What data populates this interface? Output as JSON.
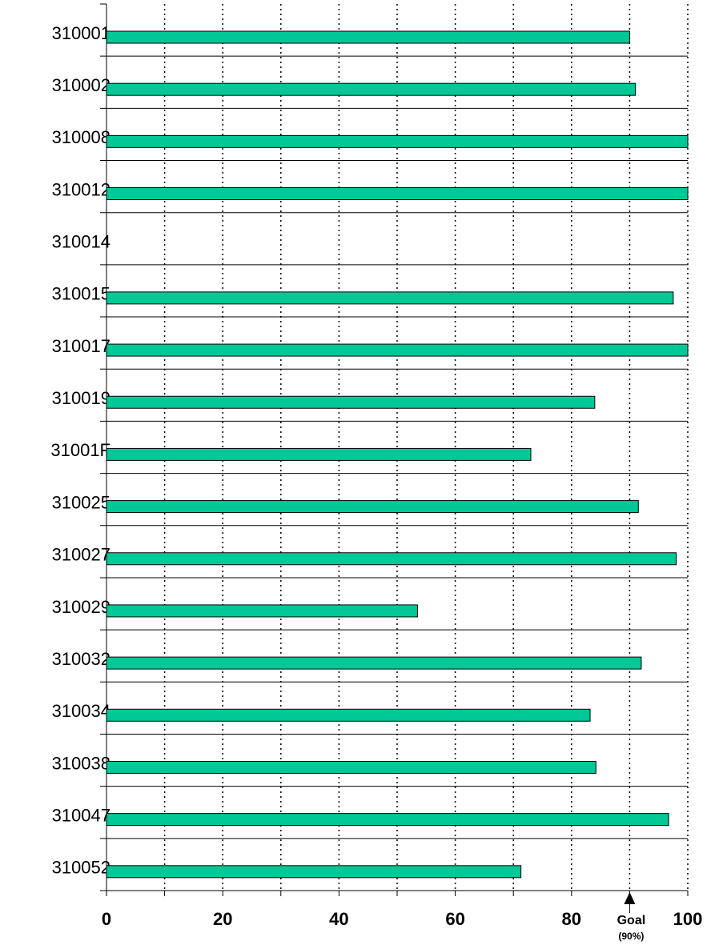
{
  "chart_data": {
    "type": "barh",
    "categories": [
      "310001",
      "310002",
      "310008",
      "310012",
      "310014",
      "310015",
      "310017",
      "310019",
      "31001F",
      "310025",
      "310027",
      "310029",
      "310032",
      "310034",
      "310038",
      "310047",
      "310052"
    ],
    "values": [
      90,
      91,
      100,
      100,
      null,
      97.5,
      100,
      84,
      73,
      91.5,
      98,
      53.5,
      92,
      83.2,
      84.2,
      96.7,
      71.3
    ],
    "color": "#00c896",
    "xlim": [
      0,
      100
    ],
    "xticks": [
      0,
      20,
      40,
      60,
      80,
      100
    ],
    "minor_xticks": [
      10,
      30,
      50,
      70,
      90
    ],
    "grid": true,
    "goal": {
      "value": 90,
      "label": "Goal",
      "sublabel": "(90%)"
    }
  }
}
